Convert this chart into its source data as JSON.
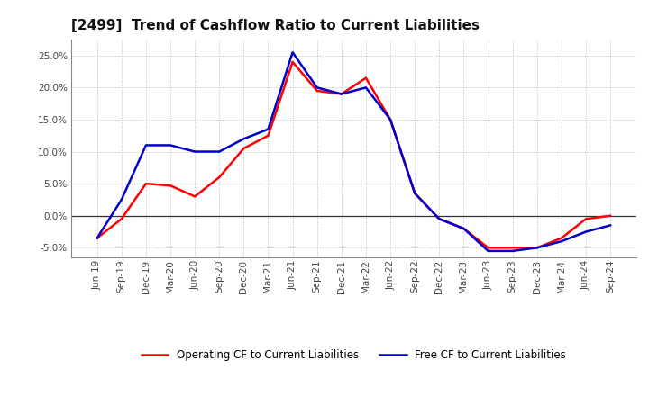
{
  "title": "[2499]  Trend of Cashflow Ratio to Current Liabilities",
  "x_labels": [
    "Jun-19",
    "Sep-19",
    "Dec-19",
    "Mar-20",
    "Jun-20",
    "Sep-20",
    "Dec-20",
    "Mar-21",
    "Jun-21",
    "Sep-21",
    "Dec-21",
    "Mar-22",
    "Jun-22",
    "Sep-22",
    "Dec-22",
    "Mar-23",
    "Jun-23",
    "Sep-23",
    "Dec-23",
    "Mar-24",
    "Jun-24",
    "Sep-24"
  ],
  "operating_cf": [
    -3.5,
    -0.5,
    5.0,
    4.7,
    3.0,
    6.0,
    10.5,
    12.5,
    24.0,
    19.5,
    19.0,
    21.5,
    15.0,
    3.5,
    -0.5,
    -2.0,
    -5.0,
    -5.0,
    -5.0,
    -3.5,
    -0.5,
    0.0
  ],
  "free_cf": [
    -3.5,
    2.5,
    11.0,
    11.0,
    10.0,
    10.0,
    12.0,
    13.5,
    25.5,
    20.0,
    19.0,
    20.0,
    15.0,
    3.5,
    -0.5,
    -2.0,
    -5.5,
    -5.5,
    -5.0,
    -4.0,
    -2.5,
    -1.5
  ],
  "operating_cf_color": "#ff0000",
  "free_cf_color": "#0000cc",
  "operating_cf_label": "Operating CF to Current Liabilities",
  "free_cf_label": "Free CF to Current Liabilities",
  "ylim": [
    -6.5,
    27.5
  ],
  "yticks": [
    -5.0,
    0.0,
    5.0,
    10.0,
    15.0,
    20.0,
    25.0
  ],
  "background_color": "#ffffff",
  "grid_color": "#bbbbbb",
  "title_fontsize": 11,
  "axis_fontsize": 7.5,
  "legend_fontsize": 8.5,
  "linewidth": 1.8
}
